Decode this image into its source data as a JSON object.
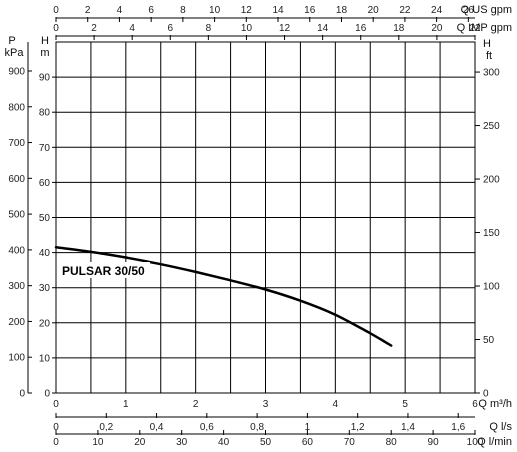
{
  "chart_data": {
    "type": "line",
    "title": "",
    "series": [
      {
        "name": "PULSAR 30/50",
        "x_unit": "m³/h",
        "x": [
          0,
          0.5,
          1,
          1.5,
          2,
          2.5,
          3,
          3.5,
          4,
          4.5,
          4.8
        ],
        "y": [
          41.5,
          40.2,
          38.6,
          36.7,
          34.5,
          32.1,
          29.5,
          26.3,
          22.3,
          17.0,
          13.5
        ]
      }
    ],
    "grid": true,
    "axes": {
      "bottom": [
        {
          "label": "Q m³/h",
          "min": 0,
          "max": 6,
          "ticks": [
            "0",
            "1",
            "2",
            "3",
            "4",
            "5",
            "6"
          ],
          "values": [
            0,
            1,
            2,
            3,
            4,
            5,
            6
          ]
        },
        {
          "label": "Q l/s",
          "min": 0,
          "max": 1.6667,
          "ticks": [
            "0",
            "0,2",
            "0,4",
            "0,6",
            "0,8",
            "1",
            "1,2",
            "1,4",
            "1,6"
          ],
          "values": [
            0,
            0.2,
            0.4,
            0.6,
            0.8,
            1.0,
            1.2,
            1.4,
            1.6
          ]
        },
        {
          "label": "Q l/min",
          "min": 0,
          "max": 100,
          "ticks": [
            "0",
            "10",
            "20",
            "30",
            "40",
            "50",
            "60",
            "70",
            "80",
            "90",
            "100"
          ],
          "values": [
            0,
            10,
            20,
            30,
            40,
            50,
            60,
            70,
            80,
            90,
            100
          ]
        }
      ],
      "top": [
        {
          "label": "Q US gpm",
          "min": 0,
          "max": 26.42,
          "ticks": [
            "0",
            "2",
            "4",
            "6",
            "8",
            "10",
            "12",
            "14",
            "16",
            "18",
            "20",
            "22",
            "24",
            "26"
          ],
          "values": [
            0,
            2,
            4,
            6,
            8,
            10,
            12,
            14,
            16,
            18,
            20,
            22,
            24,
            26
          ]
        },
        {
          "label": "Q IMP gpm",
          "min": 0,
          "max": 22.0,
          "ticks": [
            "0",
            "2",
            "4",
            "6",
            "8",
            "10",
            "12",
            "14",
            "16",
            "18",
            "20",
            "22"
          ],
          "values": [
            0,
            2,
            4,
            6,
            8,
            10,
            12,
            14,
            16,
            18,
            20,
            22
          ]
        }
      ],
      "left_kpa": {
        "label_top": "P",
        "label_unit": "kPa",
        "min": 0,
        "max": 981,
        "ticks": [
          "0",
          "100",
          "200",
          "300",
          "400",
          "500",
          "600",
          "700",
          "800",
          "900"
        ],
        "values": [
          0,
          100,
          200,
          300,
          400,
          500,
          600,
          700,
          800,
          900
        ]
      },
      "left_m": {
        "label_top": "H",
        "label_unit": "m",
        "min": 0,
        "max": 100,
        "ticks": [
          "0",
          "10",
          "20",
          "30",
          "40",
          "50",
          "60",
          "70",
          "80",
          "90"
        ],
        "values": [
          0,
          10,
          20,
          30,
          40,
          50,
          60,
          70,
          80,
          90
        ]
      },
      "right_ft": {
        "label_top": "H",
        "label_unit": "ft",
        "min": 0,
        "max": 328.1,
        "ticks": [
          "0",
          "50",
          "100",
          "150",
          "200",
          "250",
          "300"
        ],
        "values": [
          0,
          50,
          100,
          150,
          200,
          250,
          300
        ]
      }
    }
  }
}
